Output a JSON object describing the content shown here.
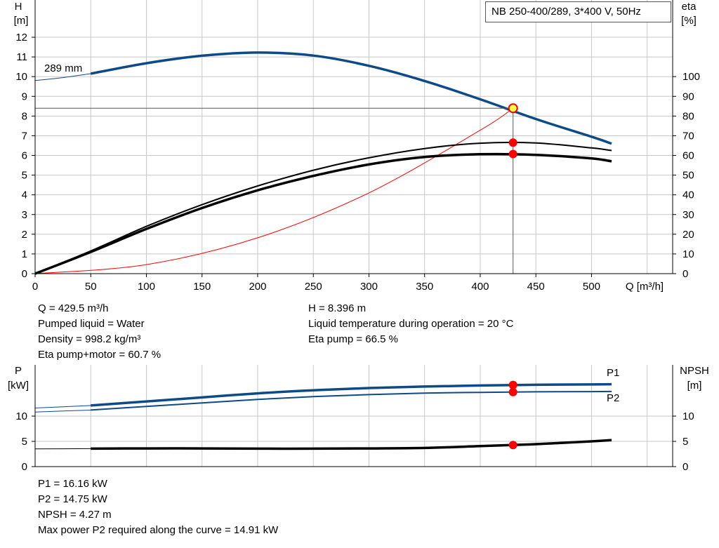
{
  "pump_label": "NB 250-400/289, 3*400 V, 50Hz",
  "colors": {
    "blue": "#0d4a87",
    "red": "#ff0000",
    "grid": "#c8c8c8",
    "marker_yellow": "#ffff44"
  },
  "top_chart": {
    "h_axis": {
      "symbol": "H",
      "unit": "[m]",
      "ticks": [
        "0",
        "1",
        "2",
        "3",
        "4",
        "5",
        "6",
        "7",
        "8",
        "9",
        "10",
        "11",
        "12"
      ]
    },
    "eta_axis": {
      "symbol": "eta",
      "unit": "[%]",
      "ticks": [
        "0",
        "10",
        "20",
        "30",
        "40",
        "50",
        "60",
        "70",
        "80",
        "90",
        "100"
      ]
    },
    "x_axis": {
      "label": "Q [m³/h]",
      "ticks": [
        "0",
        "50",
        "100",
        "150",
        "200",
        "250",
        "300",
        "350",
        "400",
        "450",
        "500"
      ]
    },
    "curve_label": "289 mm"
  },
  "bottom_chart": {
    "p_axis": {
      "symbol": "P",
      "unit": "[kW]",
      "ticks": [
        "0",
        "5",
        "10"
      ]
    },
    "npsh_axis": {
      "symbol": "NPSH",
      "unit": "[m]",
      "ticks": [
        "0",
        "5",
        "10"
      ]
    },
    "p1_label": "P1",
    "p2_label": "P2"
  },
  "results_left": [
    "Q = 429.5 m³/h",
    "Pumped liquid = Water",
    "Density = 998.2 kg/m³",
    "Eta pump+motor = 60.7 %"
  ],
  "results_right": [
    "H = 8.396 m",
    "Liquid temperature during operation = 20 °C",
    "Eta pump = 66.5 %"
  ],
  "results_bottom": [
    "P1 = 16.16 kW",
    "P2 = 14.75 kW",
    "NPSH = 4.27 m",
    "Max power P2 required along the curve = 14.91 kW"
  ],
  "chart_data": [
    {
      "type": "line",
      "title": "NB 250-400/289, 3*400 V, 50Hz",
      "xlabel": "Q [m³/h]",
      "ylabel": "H [m]",
      "y2label": "eta [%]",
      "xlim": [
        0,
        550
      ],
      "ylim": [
        0,
        12
      ],
      "y2lim": [
        0,
        120
      ],
      "grid": true,
      "series": [
        {
          "name": "289 mm",
          "axis": "H",
          "x": [
            50,
            100,
            150,
            200,
            250,
            300,
            350,
            400,
            450,
            500,
            518
          ],
          "y": [
            10.15,
            10.68,
            11.06,
            11.22,
            11.07,
            10.55,
            9.78,
            8.85,
            7.85,
            6.95,
            6.6
          ]
        },
        {
          "axis": "H",
          "style": "thin-extension",
          "x": [
            0,
            25,
            50
          ],
          "y": [
            9.8,
            9.95,
            10.15
          ]
        },
        {
          "axis": "H",
          "style": "system-curve",
          "x": [
            0,
            100,
            200,
            300,
            400,
            429.5
          ],
          "y": [
            0,
            0.46,
            1.82,
            4.1,
            7.28,
            8.396
          ]
        },
        {
          "axis": "eta",
          "style": "eta-pump",
          "x": [
            0,
            50,
            100,
            150,
            200,
            250,
            300,
            350,
            400,
            450,
            500,
            518
          ],
          "y": [
            0,
            11.5,
            24,
            35,
            44.5,
            52.5,
            58.8,
            63.5,
            66.2,
            66.3,
            63.8,
            62.5
          ]
        },
        {
          "axis": "eta",
          "style": "eta-pump-motor",
          "x": [
            0,
            50,
            100,
            150,
            200,
            250,
            300,
            350,
            400,
            450,
            500,
            518
          ],
          "y": [
            0,
            11,
            22.7,
            33.3,
            42.3,
            49.6,
            55.4,
            59.2,
            60.6,
            60.3,
            58.5,
            57
          ]
        }
      ],
      "operating_point": {
        "Q": 429.5,
        "H": 8.396,
        "eta_pump": 66.5,
        "eta_pump_motor": 60.7
      }
    },
    {
      "type": "line",
      "xlim": [
        0,
        550
      ],
      "ylabel": "P [kW]",
      "y2label": "NPSH [m]",
      "ylim": [
        0,
        15.5
      ],
      "y2lim": [
        0,
        15.5
      ],
      "grid": true,
      "series": [
        {
          "name": "P1",
          "axis": "P",
          "x": [
            0,
            50,
            100,
            150,
            200,
            250,
            300,
            350,
            400,
            450,
            500,
            518
          ],
          "y": [
            11.6,
            12.1,
            12.9,
            13.7,
            14.5,
            15.1,
            15.55,
            15.85,
            16.05,
            16.2,
            16.27,
            16.3
          ]
        },
        {
          "name": "P2",
          "axis": "P",
          "x": [
            0,
            50,
            100,
            150,
            200,
            250,
            300,
            350,
            400,
            450,
            500,
            518
          ],
          "y": [
            10.8,
            11.2,
            11.9,
            12.6,
            13.3,
            13.85,
            14.25,
            14.55,
            14.7,
            14.8,
            14.85,
            14.87
          ]
        },
        {
          "name": "NPSH",
          "axis": "NPSH",
          "x": [
            0,
            50,
            100,
            150,
            200,
            250,
            300,
            350,
            400,
            450,
            500,
            518
          ],
          "y": [
            3.5,
            3.55,
            3.6,
            3.6,
            3.55,
            3.55,
            3.6,
            3.7,
            4.05,
            4.45,
            5.0,
            5.25
          ]
        }
      ],
      "operating_point": {
        "Q": 429.5,
        "P1": 16.16,
        "P2": 14.75,
        "NPSH": 4.27
      }
    }
  ]
}
